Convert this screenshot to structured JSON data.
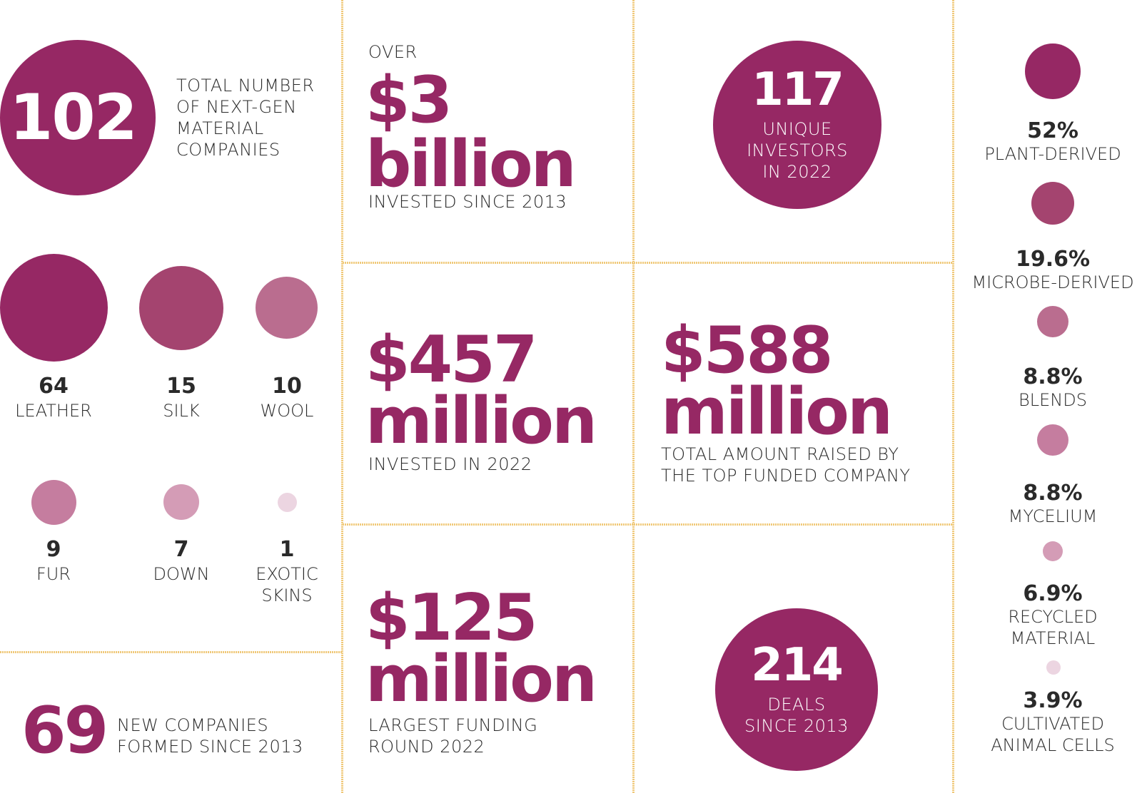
{
  "colors": {
    "primary": "#962864",
    "c2": "#a4446f",
    "c3": "#ba6d8f",
    "c4": "#c57d9f",
    "c5": "#d49cb6",
    "c6": "#ecd5e1",
    "divider": "#f0c97a"
  },
  "companies": {
    "number": "102",
    "label": "TOTAL NUMBER OF NEXT-GEN MATERIAL COMPANIES"
  },
  "materials": [
    {
      "count": "64",
      "label": "LEATHER"
    },
    {
      "count": "15",
      "label": "SILK"
    },
    {
      "count": "10",
      "label": "WOOL"
    },
    {
      "count": "9",
      "label": "FUR"
    },
    {
      "count": "7",
      "label": "DOWN"
    },
    {
      "count": "1",
      "label_line1": "EXOTIC",
      "label_line2": "SKINS"
    }
  ],
  "new_companies": {
    "number": "69",
    "label_line1": "NEW COMPANIES",
    "label_line2": "FORMED SINCE 2013"
  },
  "invested_total": {
    "prefix": "OVER",
    "line1": "$3",
    "line2": "billion",
    "label": "INVESTED SINCE 2013"
  },
  "investors": {
    "number": "117",
    "line1": "UNIQUE",
    "line2": "INVESTORS",
    "line3": "IN 2022"
  },
  "invested_2022": {
    "line1": "$457",
    "line2": "million",
    "label": "INVESTED IN 2022"
  },
  "top_funded": {
    "line1": "$588",
    "line2": "million",
    "label_line1": "TOTAL AMOUNT RAISED BY",
    "label_line2": "THE TOP FUNDED COMPANY"
  },
  "largest_round": {
    "line1": "$125",
    "line2": "million",
    "label_line1": "LARGEST FUNDING",
    "label_line2": "ROUND 2022"
  },
  "deals": {
    "number": "214",
    "line1": "DEALS",
    "line2": "SINCE 2013"
  },
  "sources": [
    {
      "pct": "52%",
      "label": "PLANT-DERIVED"
    },
    {
      "pct": "19.6%",
      "label": "MICROBE-DERIVED"
    },
    {
      "pct": "8.8%",
      "label": "BLENDS"
    },
    {
      "pct": "8.8%",
      "label": "MYCELIUM"
    },
    {
      "pct": "6.9%",
      "label_line1": "RECYCLED",
      "label_line2": "MATERIAL"
    },
    {
      "pct": "3.9%",
      "label_line1": "CULTIVATED",
      "label_line2": "ANIMAL CELLS"
    }
  ]
}
